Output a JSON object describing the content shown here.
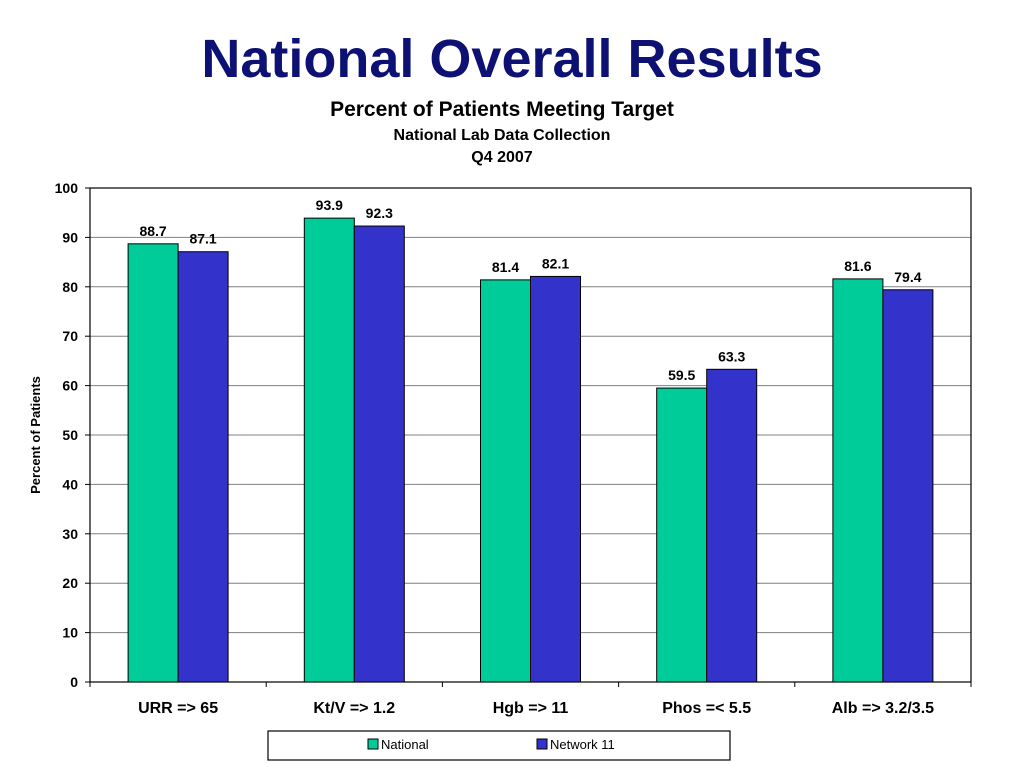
{
  "slide": {
    "title": "National Overall Results"
  },
  "colors": {
    "series_national": "#00cc99",
    "series_network": "#3333cc",
    "title": "#0d1173"
  },
  "chart_data": {
    "type": "bar",
    "title": "Percent of Patients Meeting Target",
    "subtitle": "National Lab Data Collection",
    "subtitle2": "Q4 2007",
    "ylabel": "Percent of Patients",
    "xlabel": "",
    "ylim": [
      0,
      100
    ],
    "yticks": [
      0,
      10,
      20,
      30,
      40,
      50,
      60,
      70,
      80,
      90,
      100
    ],
    "grid": true,
    "legend": "bottom",
    "categories": [
      "URR => 65",
      "Kt/V => 1.2",
      "Hgb => 11",
      "Phos =< 5.5",
      "Alb => 3.2/3.5"
    ],
    "series": [
      {
        "name": "National",
        "values": [
          88.7,
          93.9,
          81.4,
          59.5,
          81.6
        ]
      },
      {
        "name": "Network 11",
        "values": [
          87.1,
          92.3,
          82.1,
          63.3,
          79.4
        ]
      }
    ]
  }
}
